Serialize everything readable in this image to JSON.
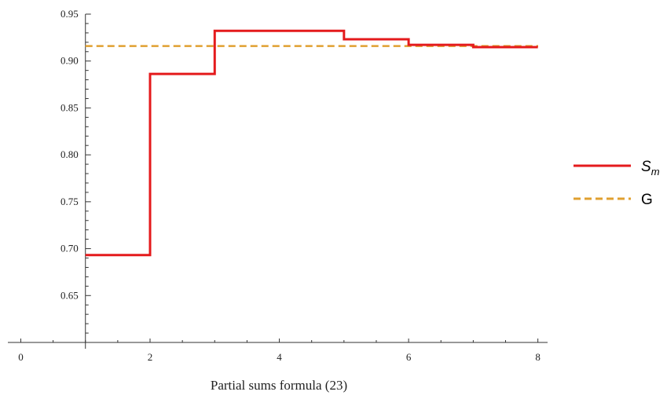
{
  "chart_data": {
    "type": "line",
    "title": "",
    "xlabel": "Partial sums formula (23)",
    "ylabel": "",
    "xlim": [
      -0.2,
      8.15
    ],
    "ylim": [
      0.6,
      0.95
    ],
    "origin_x": 1,
    "x_ticks": [
      0,
      2,
      4,
      6,
      8
    ],
    "y_ticks": [
      0.65,
      0.7,
      0.75,
      0.8,
      0.85,
      0.9,
      0.95
    ],
    "y_tick_labels": [
      "0.65",
      "0.70",
      "0.75",
      "0.80",
      "0.85",
      "0.90",
      "0.95"
    ],
    "grid": false,
    "legend_position": "right",
    "series": [
      {
        "name": "S",
        "name_subscript": "m",
        "style": "step",
        "color": "#e41a1c",
        "x": [
          1,
          2,
          3,
          4,
          5,
          6,
          7,
          8
        ],
        "values": [
          0.6931,
          0.8863,
          0.9322,
          0.9322,
          0.9232,
          0.9172,
          0.9148,
          0.9148
        ]
      },
      {
        "name": "G",
        "style": "dashed",
        "color": "#e0a030",
        "value": 0.916
      }
    ]
  }
}
